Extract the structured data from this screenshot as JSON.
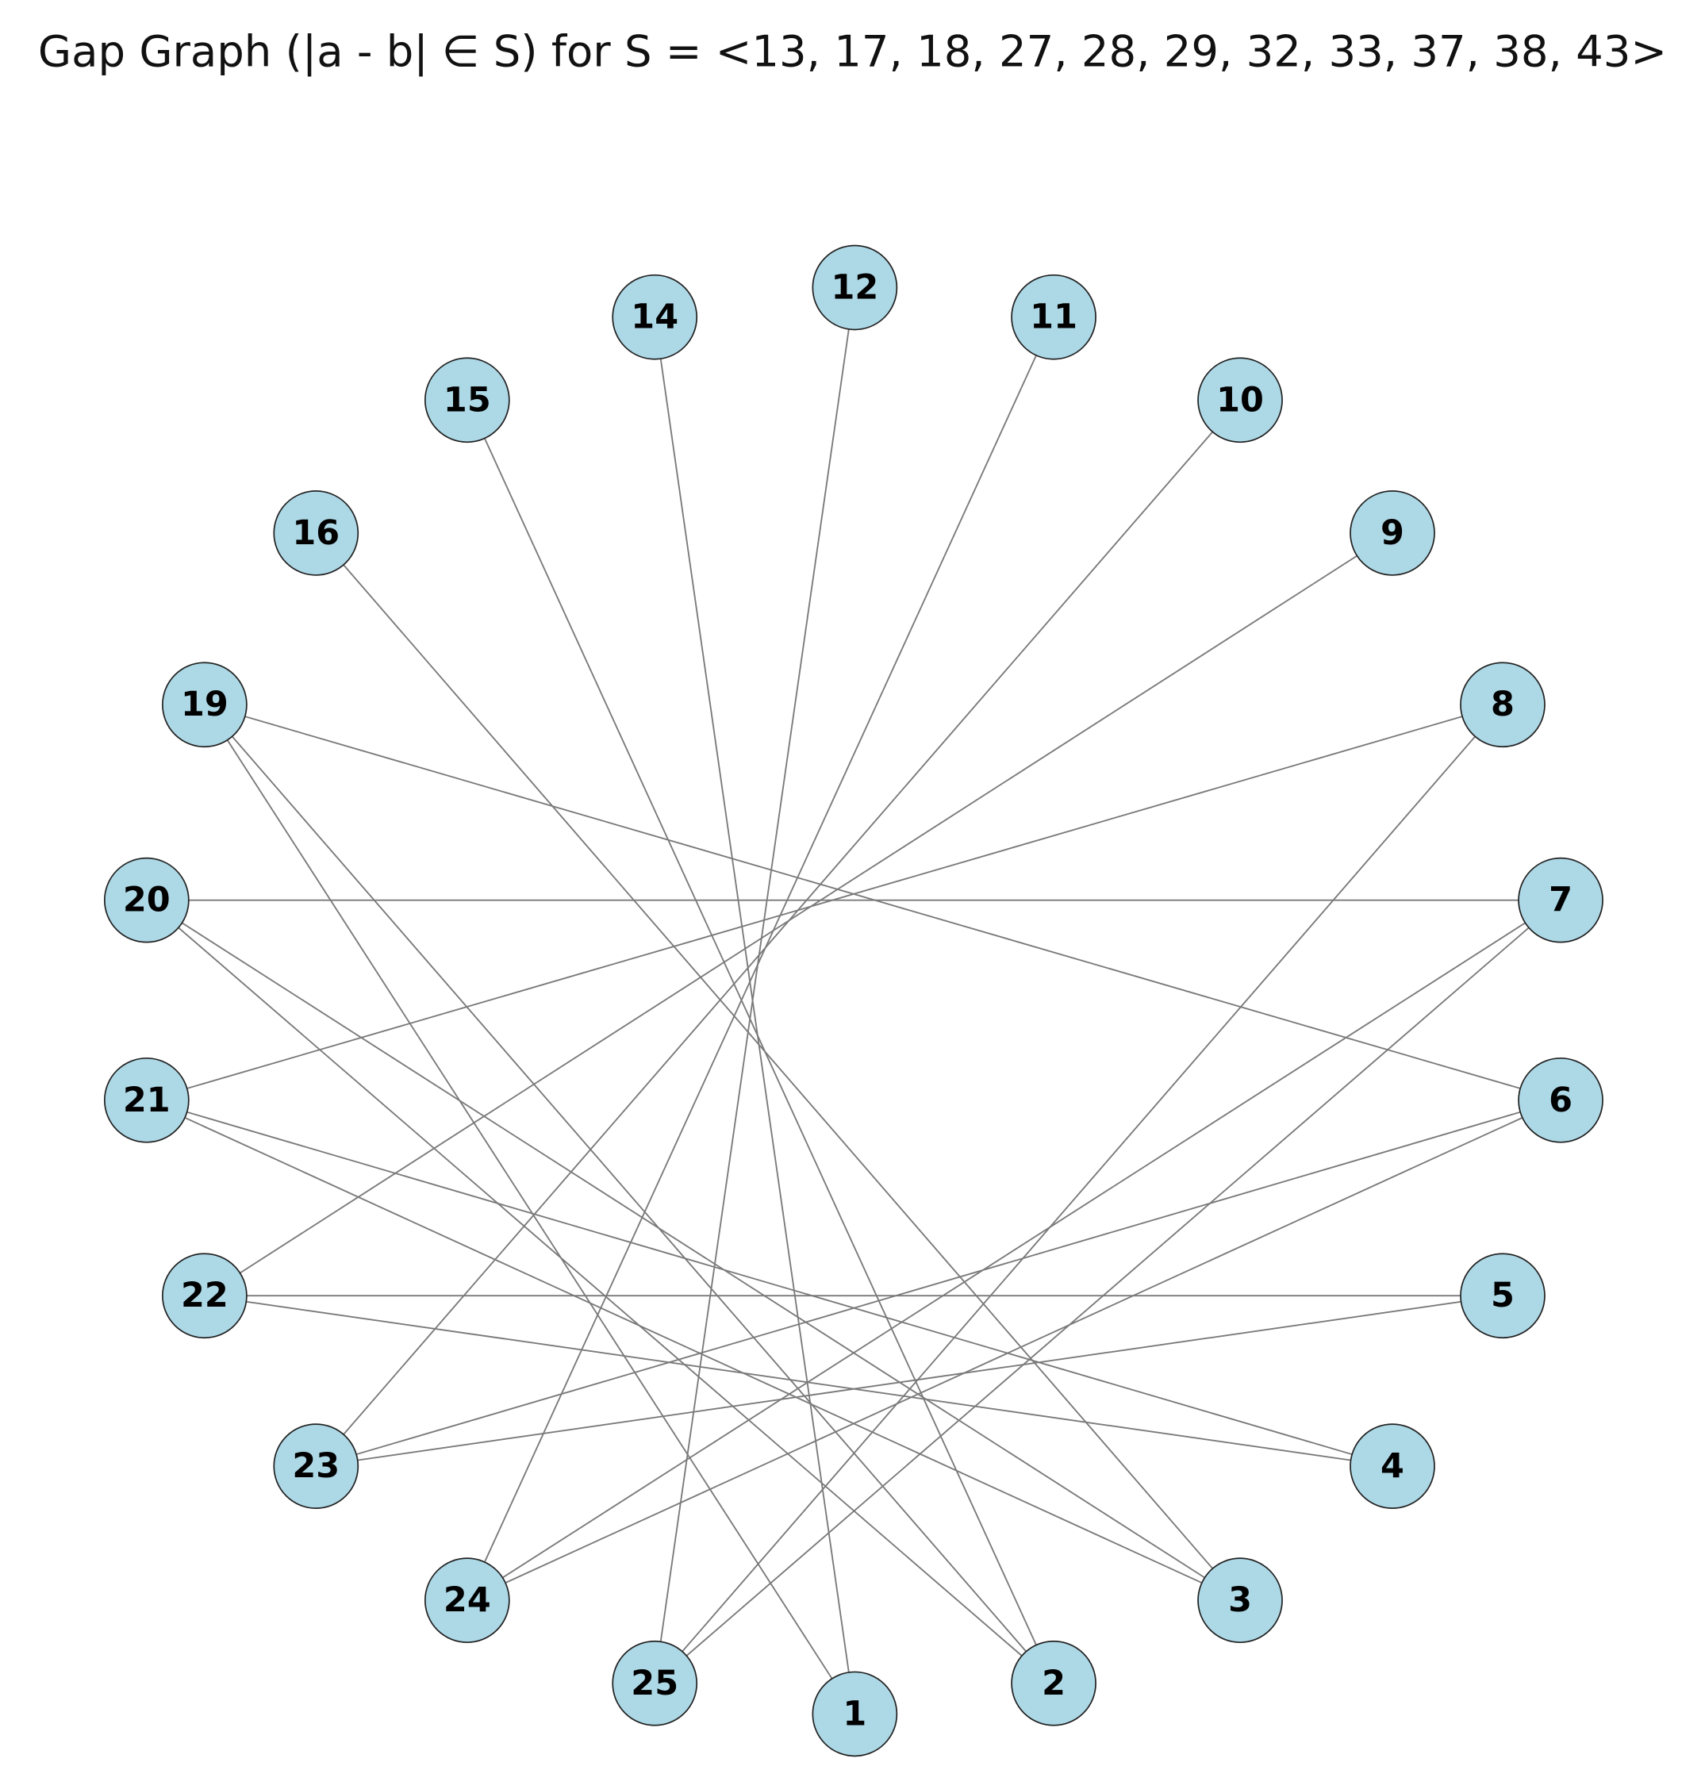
{
  "title": "Gap Graph (|a - b| ∈ S) for S = <13, 17, 18, 27, 28, 29, 32, 33, 37, 38, 43>",
  "nodes": [
    {
      "label": "12"
    },
    {
      "label": "14"
    },
    {
      "label": "11"
    },
    {
      "label": "15"
    },
    {
      "label": "10"
    },
    {
      "label": "16"
    },
    {
      "label": "9"
    },
    {
      "label": "19"
    },
    {
      "label": "8"
    },
    {
      "label": "20"
    },
    {
      "label": "7"
    },
    {
      "label": "21"
    },
    {
      "label": "6"
    },
    {
      "label": "22"
    },
    {
      "label": "5"
    },
    {
      "label": "23"
    },
    {
      "label": "4"
    },
    {
      "label": "24"
    },
    {
      "label": "3"
    },
    {
      "label": "25"
    },
    {
      "label": "2"
    },
    {
      "label": "1"
    }
  ],
  "edges": [
    [
      "12",
      "25"
    ],
    [
      "14",
      "1"
    ],
    [
      "11",
      "24"
    ],
    [
      "15",
      "2"
    ],
    [
      "10",
      "23"
    ],
    [
      "16",
      "3"
    ],
    [
      "9",
      "22"
    ],
    [
      "8",
      "21"
    ],
    [
      "8",
      "25"
    ],
    [
      "19",
      "6"
    ],
    [
      "19",
      "2"
    ],
    [
      "19",
      "1"
    ],
    [
      "20",
      "7"
    ],
    [
      "20",
      "3"
    ],
    [
      "20",
      "2"
    ],
    [
      "21",
      "4"
    ],
    [
      "21",
      "3"
    ],
    [
      "22",
      "5"
    ],
    [
      "22",
      "4"
    ],
    [
      "23",
      "6"
    ],
    [
      "23",
      "5"
    ],
    [
      "24",
      "7"
    ],
    [
      "24",
      "6"
    ],
    [
      "25",
      "7"
    ]
  ]
}
